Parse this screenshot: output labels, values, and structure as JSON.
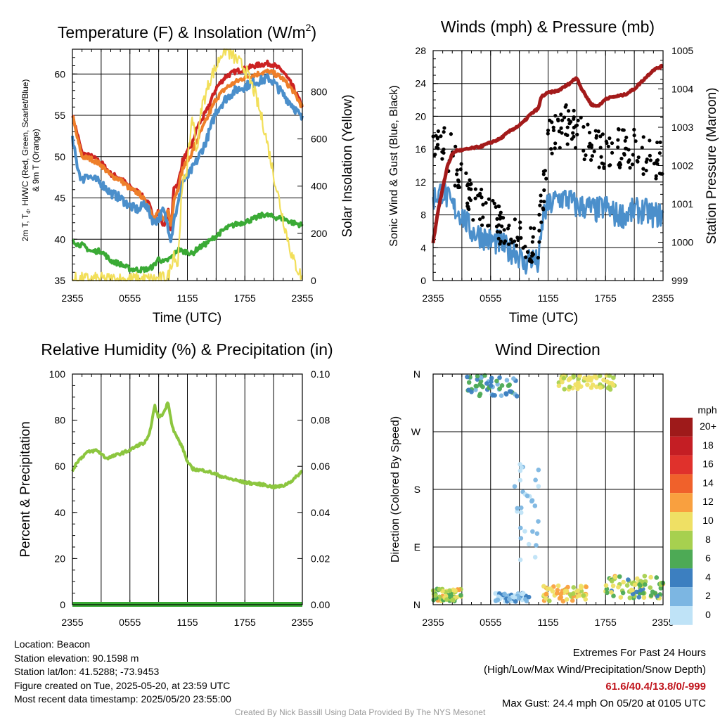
{
  "chart_data": [
    {
      "type": "line",
      "title": "Temperature (F) & Insolation (W/m²)",
      "title_parts": [
        "Temperature (F) & Insolation (W/m",
        "2",
        ")"
      ],
      "xlabel": "Time (UTC)",
      "ylabel": "2m T, Td, HI/WC (Red, Green, Scarlet/Blue) & 9m T (Orange)",
      "ylabel_parts": {
        "l1a": "2m T, T",
        "l1sub": "d",
        "l1b": ", HI/WC (Red, Green, Scarlet/Blue)",
        "l2": "& 9m T (Orange)"
      },
      "y2label": "Solar Insolation (Yellow)",
      "xticklabels": [
        "2355",
        "0555",
        "1155",
        "1755",
        "2355"
      ],
      "ylim": [
        35,
        63
      ],
      "yticks": [
        35,
        40,
        45,
        50,
        55,
        60
      ],
      "y2lim": [
        0,
        980
      ],
      "y2ticks": [
        0,
        200,
        400,
        600,
        800
      ],
      "x_hours": [
        0,
        24
      ],
      "grid": true,
      "series": [
        {
          "color": "#cc2222",
          "axis": "left",
          "x": [
            0,
            0.5,
            1,
            2,
            3,
            4,
            5,
            6,
            7,
            8,
            8.5,
            9,
            9.5,
            10,
            10.3,
            10.6,
            11,
            11.5,
            12,
            12.5,
            13,
            14,
            15,
            16,
            17,
            18,
            19,
            20,
            20.5,
            21,
            22,
            23,
            24
          ],
          "values": [
            55,
            52.8,
            50.4,
            50,
            49.3,
            47.9,
            47.4,
            46.3,
            45.6,
            44.2,
            42.3,
            43.5,
            41.5,
            43.5,
            41,
            46.5,
            46.5,
            49.5,
            50.5,
            51.5,
            53.5,
            55.5,
            58.3,
            59.7,
            60.3,
            60.6,
            61,
            61.2,
            61.3,
            61.1,
            60.3,
            58.5,
            56
          ]
        },
        {
          "color": "#ee7f2a",
          "axis": "left",
          "x": [
            0,
            0.5,
            1,
            2,
            3,
            4,
            5,
            6,
            7,
            8,
            8.5,
            9,
            9.5,
            10,
            10.3,
            10.6,
            11,
            11.5,
            12,
            12.5,
            13,
            14,
            15,
            16,
            17,
            18,
            19,
            20,
            20.5,
            21,
            22,
            23,
            24
          ],
          "values": [
            55,
            52.3,
            50,
            49.7,
            49,
            47.7,
            47.2,
            46.1,
            45.5,
            44,
            42.5,
            43.3,
            42.2,
            43.5,
            41.5,
            45,
            46,
            48.5,
            49.5,
            50.5,
            52,
            54.5,
            57,
            58.3,
            59,
            59.6,
            59.9,
            60.2,
            60.3,
            60.1,
            59.4,
            58,
            56
          ]
        },
        {
          "color": "#4b8fcb",
          "axis": "left",
          "x": [
            0,
            0.5,
            1,
            1.5,
            2,
            3,
            4,
            5,
            6,
            7,
            7.5,
            8,
            8.5,
            9,
            9.5,
            10,
            10.3,
            10.6,
            11,
            11.5,
            12,
            12.5,
            13,
            14,
            15,
            16,
            17,
            18,
            19,
            20,
            20.5,
            21,
            22,
            23,
            24
          ],
          "values": [
            52,
            49,
            47,
            48,
            47.4,
            46.8,
            45.6,
            45,
            44,
            43.5,
            44.5,
            43.3,
            42,
            42.5,
            43.5,
            41.5,
            40,
            42.5,
            44,
            47,
            47.5,
            48.5,
            49.5,
            52,
            55.5,
            57,
            58,
            58.5,
            59,
            59.3,
            59.5,
            59,
            57.5,
            56.2,
            54.5
          ]
        },
        {
          "color": "#3aaa35",
          "axis": "left",
          "x": [
            0,
            0.5,
            1,
            2,
            3,
            4,
            5,
            6,
            7,
            8,
            8.5,
            9,
            9.5,
            10,
            10.5,
            11,
            11.5,
            12,
            12.5,
            13,
            14,
            15,
            16,
            17,
            18,
            19,
            20,
            21,
            22,
            23,
            24
          ],
          "values": [
            40,
            39.4,
            39.3,
            38.5,
            38.6,
            37.4,
            37,
            36.4,
            36.3,
            36.4,
            36.8,
            37.7,
            37.2,
            37.5,
            38,
            38.8,
            38.5,
            38.5,
            38.2,
            38.8,
            39.5,
            40.4,
            41.3,
            41.8,
            42.1,
            42.5,
            43,
            42.7,
            42.5,
            42,
            41.7
          ]
        },
        {
          "color": "#f2df5a",
          "axis": "right",
          "x": [
            0,
            6,
            8,
            8.8,
            9.5,
            10,
            10.6,
            11,
            11.3,
            11.6,
            12,
            12.5,
            13,
            13.5,
            14,
            14.5,
            15,
            15.5,
            16,
            16.5,
            17,
            18,
            19,
            20,
            21,
            22,
            23,
            24
          ],
          "values": [
            5,
            5,
            5,
            5,
            10,
            15,
            120,
            60,
            300,
            430,
            480,
            700,
            550,
            740,
            800,
            870,
            900,
            960,
            980,
            960,
            940,
            900,
            800,
            650,
            450,
            260,
            90,
            10
          ]
        }
      ]
    },
    {
      "type": "line",
      "title": "Winds (mph) & Pressure (mb)",
      "xlabel": "Time (UTC)",
      "ylabel": "Sonic Wind & Gust (Blue, Black)",
      "y2label": "Station Pressure (Maroon)",
      "xticklabels": [
        "2355",
        "0555",
        "1155",
        "1755",
        "2355"
      ],
      "ylim": [
        0,
        28
      ],
      "yticks": [
        0,
        4,
        8,
        12,
        16,
        20,
        24,
        28
      ],
      "y2lim": [
        999,
        1005
      ],
      "y2ticks": [
        999,
        1000,
        1001,
        1002,
        1003,
        1004,
        1005
      ],
      "x_hours": [
        0,
        24
      ],
      "grid": true,
      "pressure": {
        "color": "#a31a1a",
        "x": [
          0,
          0.5,
          1,
          1.5,
          2,
          2.5,
          3,
          4,
          5,
          6,
          7,
          8,
          9,
          9.5,
          10,
          11,
          11.3,
          12,
          13,
          14,
          14.5,
          15,
          15.5,
          16,
          16.5,
          17,
          17.5,
          18,
          19,
          20,
          21,
          22,
          23,
          24
        ],
        "values": [
          1000,
          1000.8,
          1001.4,
          1002,
          1002.3,
          1002.4,
          1002.4,
          1002.45,
          1002.5,
          1002.6,
          1002.7,
          1002.9,
          1003.05,
          1003.15,
          1003.3,
          1003.5,
          1003.8,
          1003.9,
          1003.95,
          1004.1,
          1004.2,
          1004.3,
          1004.0,
          1003.8,
          1003.6,
          1003.55,
          1003.6,
          1003.75,
          1003.8,
          1003.85,
          1004.0,
          1004.25,
          1004.5,
          1004.6
        ]
      },
      "wind": {
        "color": "#4b8fcb",
        "x": [
          0,
          1,
          2,
          3,
          4,
          5,
          6,
          7,
          8,
          8.5,
          9,
          9.5,
          10,
          10.5,
          11,
          11.5,
          12,
          13,
          14,
          15,
          16,
          17,
          18,
          19,
          20,
          21,
          22,
          23,
          24
        ],
        "values": [
          10,
          11,
          9,
          8,
          6,
          5.5,
          4.8,
          4.6,
          3.5,
          3.8,
          3,
          1.8,
          2.8,
          2.5,
          2,
          8,
          9,
          10,
          10,
          9,
          9,
          8.5,
          9,
          8,
          8,
          8.5,
          8.5,
          8,
          8
        ]
      },
      "gusts": {
        "color": "#000000",
        "count": 260,
        "x": [
          0,
          1,
          2,
          3,
          4,
          5,
          6,
          7,
          8,
          9,
          10,
          11,
          12,
          13,
          14,
          15,
          16,
          17,
          18,
          19,
          20,
          21,
          22,
          23,
          24
        ],
        "values": [
          17,
          17,
          15,
          12,
          10,
          9,
          8.5,
          7,
          6,
          5,
          4.5,
          5,
          17,
          18,
          19,
          18,
          17,
          16,
          16,
          16.5,
          16,
          16,
          15,
          15,
          14.5
        ],
        "spread": 2.6
      }
    },
    {
      "type": "line",
      "title": "Relative Humidity (%) & Precipitation (in)",
      "xlabel": "",
      "ylabel": "Percent & Precipitation",
      "xticklabels": [
        "2355",
        "0555",
        "1155",
        "1755",
        "2355"
      ],
      "ylim": [
        0,
        100
      ],
      "yticks": [
        0,
        20,
        40,
        60,
        80,
        100
      ],
      "y2lim": [
        0,
        0.1
      ],
      "y2ticks": [
        "0.00",
        "0.02",
        "0.04",
        "0.06",
        "0.08",
        "0.10"
      ],
      "x_hours": [
        0,
        24
      ],
      "grid": true,
      "series": [
        {
          "name": "Relative Humidity",
          "color": "#8cc63f",
          "x": [
            0,
            0.5,
            1,
            1.5,
            2,
            2.5,
            3,
            3.5,
            4,
            5,
            6,
            7,
            7.5,
            8,
            8.3,
            8.6,
            9,
            9.5,
            10,
            10.3,
            10.6,
            11,
            11.5,
            12,
            12.5,
            13,
            14,
            15,
            16,
            17,
            18,
            19,
            20,
            21,
            22,
            23,
            24
          ],
          "values": [
            58,
            62,
            64,
            66,
            66.5,
            67,
            65.5,
            63.5,
            64,
            65.5,
            67,
            69.5,
            70,
            73,
            80,
            86,
            81,
            83,
            88,
            80,
            75,
            72,
            68,
            62,
            59,
            58.5,
            58,
            56.5,
            55,
            54,
            53,
            52.5,
            52,
            51,
            51.5,
            54,
            58
          ]
        },
        {
          "name": "Precipitation",
          "color": "#3aaa35",
          "x": [
            0,
            24
          ],
          "values": [
            0,
            0
          ]
        }
      ]
    },
    {
      "type": "scatter",
      "title": "Wind Direction",
      "xlabel": "",
      "ylabel": "Direction (Colored By Speed)",
      "xticklabels": [
        "2355",
        "0555",
        "1155",
        "1755",
        "2355"
      ],
      "yticklabels": [
        "N",
        "E",
        "S",
        "W",
        "N"
      ],
      "ylim": [
        0,
        360
      ],
      "x_hours": [
        0,
        24
      ],
      "grid": true,
      "colorbar": {
        "unit": "mph",
        "labels": [
          "20+",
          "18",
          "16",
          "14",
          "12",
          "10",
          "8",
          "6",
          "4",
          "2",
          "0"
        ],
        "colors": [
          "#9e1a1a",
          "#c41e24",
          "#e0312c",
          "#f0612b",
          "#f9a03f",
          "#efe064",
          "#a7d04f",
          "#4daa55",
          "#3c7fc0",
          "#7cb6e2",
          "#bfe3f7"
        ]
      },
      "point_count": 380
    }
  ],
  "info": {
    "location": "Location: Beacon",
    "elevation": "Station elevation: 90.1598 m",
    "latlon": "Station lat/lon: 41.5288; -73.9453",
    "created": "Figure created on Tue, 2025-05-20, at 23:59 UTC",
    "recent": "Most recent data timestamp: 2025/05/20 23:55:00"
  },
  "extremes": {
    "heading": "Extremes For Past 24 Hours",
    "subheading": "(High/Low/Max Wind/Precipitation/Snow Depth)",
    "values": "61.6/40.4/13.8/0/-999",
    "gust": "Max Gust: 24.4 mph On 05/20 at 0105 UTC"
  },
  "credit": "Created By Nick Bassill Using Data Provided By The NYS Mesonet"
}
